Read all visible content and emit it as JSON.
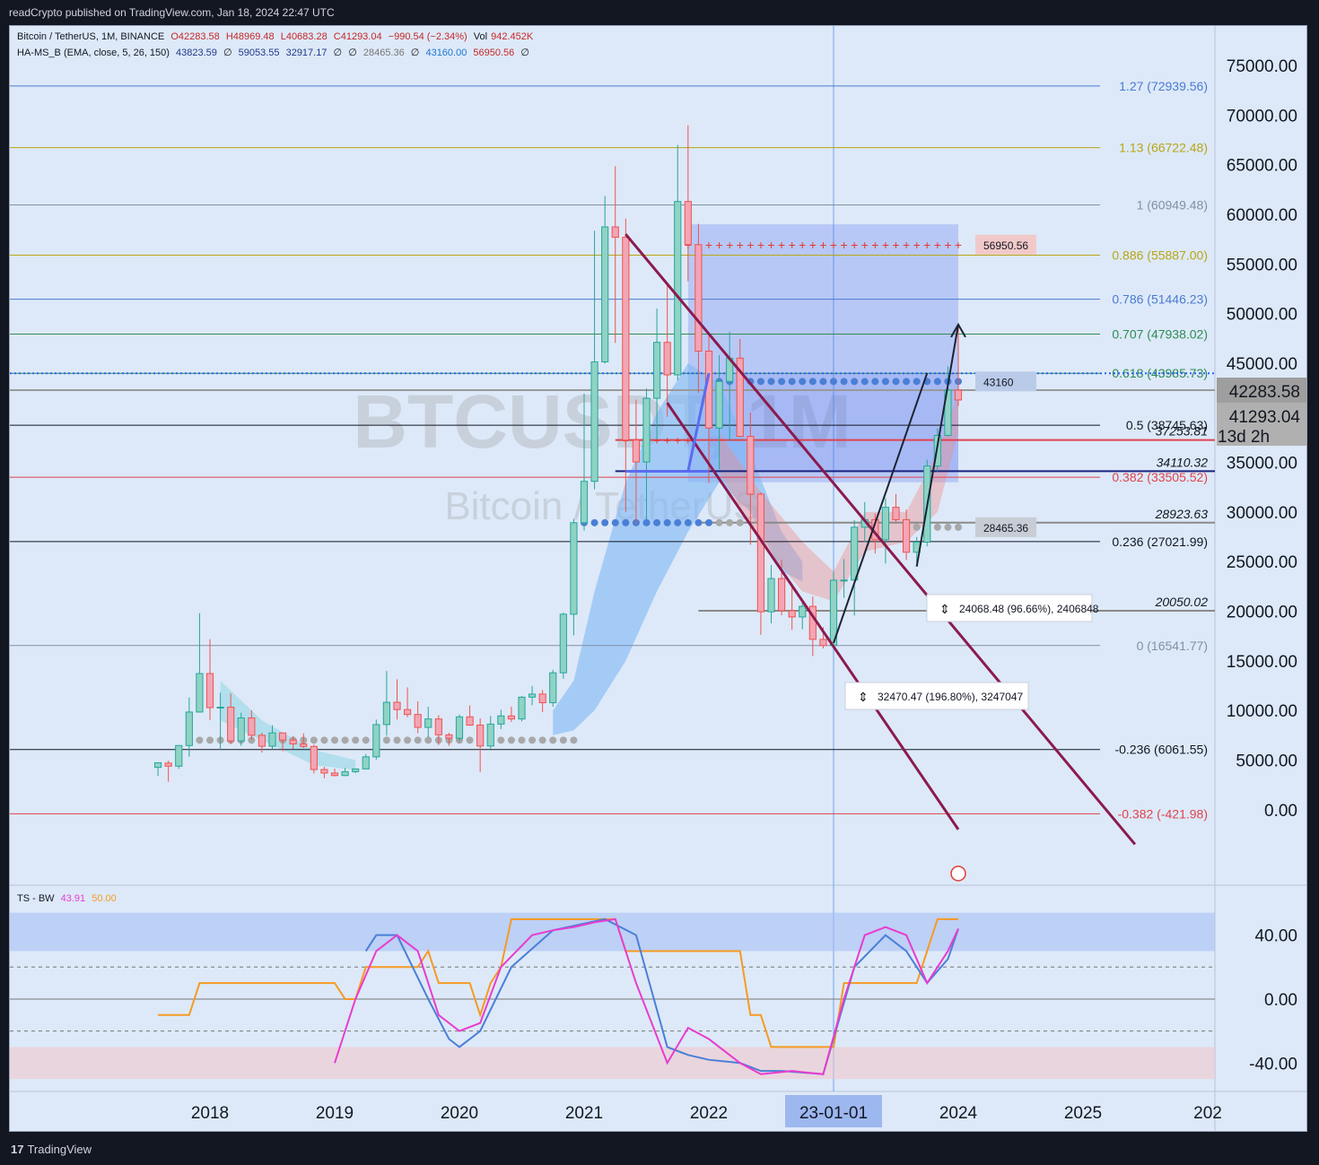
{
  "header": {
    "publisher": "readCrypto published on TradingView.com, Jan 18, 2024 22:47 UTC"
  },
  "footer": {
    "brand": "TradingView"
  },
  "legend": {
    "symbol": "Bitcoin / TetherUS, 1M, BINANCE",
    "open": "O42283.58",
    "high": "H48969.48",
    "low": "L40683.28",
    "close": "C41293.04",
    "change": "−990.54 (−2.34%)",
    "vol_label": "Vol",
    "vol": "942.452K",
    "indicator": "HA-MS_B (EMA, close, 5, 26, 150)",
    "ind_v1": "43823.59",
    "ind_v2": "∅",
    "ind_v3": "59053.55",
    "ind_v4": "32917.17",
    "ind_v5": "∅",
    "ind_v6": "∅",
    "ind_v7": "28465.36",
    "ind_v8": "∅",
    "ind_v9": "43160.00",
    "ind_v10": "56950.56",
    "ind_v11": "∅"
  },
  "oscillator_legend": {
    "name": "TS - BW",
    "v1": "43.91",
    "v2": "50.00"
  },
  "watermark": {
    "symbol": "BTCUSDT, 1M",
    "name": "Bitcoin / TetherUS"
  },
  "colors": {
    "up": "#26a69a",
    "down": "#ef5350",
    "channel": "#8b1a4f",
    "fib_blue": "#4a7bd0",
    "fib_gold": "#b8a516",
    "fib_green": "#2e8b57",
    "fib_red": "#e0424d",
    "osc_orange": "#f59a23",
    "osc_magenta": "#e83ccf",
    "osc_blue": "#4a7fd6"
  },
  "chart_data": {
    "type": "candlestick",
    "symbol": "BTCUSDT",
    "timeframe": "1M",
    "price_axis": {
      "ticks": [
        "75000.00",
        "70000.00",
        "65000.00",
        "60000.00",
        "55000.00",
        "50000.00",
        "45000.00",
        "35000.00",
        "30000.00",
        "25000.00",
        "20000.00",
        "15000.00",
        "10000.00",
        "5000.00",
        "0.00"
      ],
      "range": [
        -4000,
        77000
      ]
    },
    "time_axis": {
      "ticks": [
        "2018",
        "2019",
        "2020",
        "2021",
        "2022",
        "2024",
        "2025",
        "202"
      ],
      "highlight": "23-01-01",
      "range": [
        "2017-05-01",
        "2026-03-01"
      ]
    },
    "last_price": {
      "open_label": "42283.58",
      "close_label": "41293.04",
      "countdown": "13d 2h"
    },
    "fib_levels": [
      {
        "ratio": "1.27",
        "value": 72939.56,
        "label": "1.27 (72939.56)",
        "color": "#4a7bd0"
      },
      {
        "ratio": "1.13",
        "value": 66722.48,
        "label": "1.13 (66722.48)",
        "color": "#b8a516"
      },
      {
        "ratio": "1",
        "value": 60949.48,
        "label": "1 (60949.48)",
        "color": "#8090a8"
      },
      {
        "ratio": "0.886",
        "value": 55887.0,
        "label": "0.886 (55887.00)",
        "color": "#b8a516"
      },
      {
        "ratio": "0.786",
        "value": 51446.23,
        "label": "0.786 (51446.23)",
        "color": "#4a7bd0"
      },
      {
        "ratio": "0.707",
        "value": 47938.02,
        "label": "0.707 (47938.02)",
        "color": "#2e8b57"
      },
      {
        "ratio": "0.618",
        "value": 43985.73,
        "label": "0.618 (43985.73)",
        "color": "#2e8b57"
      },
      {
        "ratio": "0.5",
        "value": 38745.63,
        "label": "0.5 (38745.63)",
        "color": "#131722"
      },
      {
        "ratio": "0.382",
        "value": 33505.52,
        "label": "0.382 (33505.52)",
        "color": "#e0424d"
      },
      {
        "ratio": "0.236",
        "value": 27021.99,
        "label": "0.236 (27021.99)",
        "color": "#131722"
      },
      {
        "ratio": "0",
        "value": 16541.77,
        "label": "0 (16541.77)",
        "color": "#8090a8"
      },
      {
        "ratio": "-0.236",
        "value": 6061.55,
        "label": "-0.236 (6061.55)",
        "color": "#131722"
      },
      {
        "ratio": "-0.382",
        "value": -421.98,
        "label": "-0.382 (-421.98)",
        "color": "#e0424d"
      }
    ],
    "hlines": [
      {
        "value": 37253.81,
        "label": "37253.81",
        "color": "#e0424d"
      },
      {
        "value": 34110.32,
        "label": "34110.32",
        "color": "#1a237e"
      },
      {
        "value": 28923.63,
        "label": "28923.63",
        "color": "#8a8a8a"
      },
      {
        "value": 20050.02,
        "label": "20050.02",
        "color": "#8a8a8a"
      }
    ],
    "indicator_tags": [
      {
        "value": 56950.56,
        "label": "56950.56"
      },
      {
        "value": 43160,
        "label": "43160"
      },
      {
        "value": 28465.36,
        "label": "28465.36"
      }
    ],
    "measurements": [
      {
        "label": "24068.48 (96.66%), 2406848"
      },
      {
        "label": "32470.47 (196.80%), 3247047"
      }
    ],
    "candles": [
      {
        "t": "2017-08",
        "o": 4261,
        "h": 4745,
        "l": 3400,
        "c": 4724
      },
      {
        "t": "2017-09",
        "o": 4690,
        "h": 4939,
        "l": 2817,
        "c": 4378
      },
      {
        "t": "2017-10",
        "o": 4378,
        "h": 6470,
        "l": 4110,
        "c": 6463
      },
      {
        "t": "2017-11",
        "o": 6463,
        "h": 11300,
        "l": 5325,
        "c": 9838
      },
      {
        "t": "2017-12",
        "o": 9838,
        "h": 19798,
        "l": 10400,
        "c": 13716
      },
      {
        "t": "2018-01",
        "o": 13716,
        "h": 17176,
        "l": 9035,
        "c": 10285
      },
      {
        "t": "2018-02",
        "o": 10285,
        "h": 11786,
        "l": 6000,
        "c": 10326
      },
      {
        "t": "2018-03",
        "o": 10326,
        "h": 11708,
        "l": 6600,
        "c": 6923
      },
      {
        "t": "2018-04",
        "o": 6923,
        "h": 9759,
        "l": 6425,
        "c": 9246
      },
      {
        "t": "2018-05",
        "o": 9246,
        "h": 10020,
        "l": 7032,
        "c": 7494
      },
      {
        "t": "2018-06",
        "o": 7494,
        "h": 7754,
        "l": 5750,
        "c": 6391
      },
      {
        "t": "2018-07",
        "o": 6391,
        "h": 8507,
        "l": 6070,
        "c": 7729
      },
      {
        "t": "2018-08",
        "o": 7729,
        "h": 7750,
        "l": 5880,
        "c": 7016
      },
      {
        "t": "2018-09",
        "o": 7016,
        "h": 7410,
        "l": 6111,
        "c": 6626
      },
      {
        "t": "2018-10",
        "o": 6626,
        "h": 7680,
        "l": 6205,
        "c": 6371
      },
      {
        "t": "2018-11",
        "o": 6371,
        "h": 6540,
        "l": 3652,
        "c": 4041
      },
      {
        "t": "2018-12",
        "o": 4041,
        "h": 4313,
        "l": 3156,
        "c": 3689
      },
      {
        "t": "2019-01",
        "o": 3689,
        "h": 4140,
        "l": 3349,
        "c": 3437
      },
      {
        "t": "2019-02",
        "o": 3437,
        "h": 4198,
        "l": 3373,
        "c": 3826
      },
      {
        "t": "2019-03",
        "o": 3826,
        "h": 4140,
        "l": 3670,
        "c": 4103
      },
      {
        "t": "2019-04",
        "o": 4103,
        "h": 5600,
        "l": 4067,
        "c": 5321
      },
      {
        "t": "2019-05",
        "o": 5321,
        "h": 9074,
        "l": 5032,
        "c": 8574
      },
      {
        "t": "2019-06",
        "o": 8574,
        "h": 13970,
        "l": 7451,
        "c": 10818
      },
      {
        "t": "2019-07",
        "o": 10818,
        "h": 13147,
        "l": 9070,
        "c": 10085
      },
      {
        "t": "2019-08",
        "o": 10085,
        "h": 12325,
        "l": 9320,
        "c": 9588
      },
      {
        "t": "2019-09",
        "o": 9588,
        "h": 10905,
        "l": 7710,
        "c": 8289
      },
      {
        "t": "2019-10",
        "o": 8289,
        "h": 10370,
        "l": 7300,
        "c": 9140
      },
      {
        "t": "2019-11",
        "o": 9140,
        "h": 9513,
        "l": 6515,
        "c": 7541
      },
      {
        "t": "2019-12",
        "o": 7541,
        "h": 7750,
        "l": 6435,
        "c": 7195
      },
      {
        "t": "2020-01",
        "o": 7195,
        "h": 9578,
        "l": 6871,
        "c": 9352
      },
      {
        "t": "2020-02",
        "o": 9352,
        "h": 10500,
        "l": 8445,
        "c": 8523
      },
      {
        "t": "2020-03",
        "o": 8523,
        "h": 9189,
        "l": 3782,
        "c": 6410
      },
      {
        "t": "2020-04",
        "o": 6410,
        "h": 9460,
        "l": 6150,
        "c": 8620
      },
      {
        "t": "2020-05",
        "o": 8620,
        "h": 10067,
        "l": 8117,
        "c": 9448
      },
      {
        "t": "2020-06",
        "o": 9448,
        "h": 10380,
        "l": 8833,
        "c": 9138
      },
      {
        "t": "2020-07",
        "o": 9138,
        "h": 11444,
        "l": 8893,
        "c": 11335
      },
      {
        "t": "2020-08",
        "o": 11335,
        "h": 12468,
        "l": 10518,
        "c": 11649
      },
      {
        "t": "2020-09",
        "o": 11649,
        "h": 12050,
        "l": 9825,
        "c": 10776
      },
      {
        "t": "2020-10",
        "o": 10776,
        "h": 14100,
        "l": 10374,
        "c": 13791
      },
      {
        "t": "2020-11",
        "o": 13791,
        "h": 19863,
        "l": 13195,
        "c": 19695
      },
      {
        "t": "2020-12",
        "o": 19695,
        "h": 29300,
        "l": 17572,
        "c": 28923
      },
      {
        "t": "2021-01",
        "o": 28923,
        "h": 41950,
        "l": 28130,
        "c": 33092
      },
      {
        "t": "2021-02",
        "o": 33092,
        "h": 58352,
        "l": 32296,
        "c": 45135
      },
      {
        "t": "2021-03",
        "o": 45135,
        "h": 61844,
        "l": 44950,
        "c": 58740
      },
      {
        "t": "2021-04",
        "o": 58740,
        "h": 64854,
        "l": 47044,
        "c": 57694
      },
      {
        "t": "2021-05",
        "o": 57694,
        "h": 59592,
        "l": 30000,
        "c": 37253
      },
      {
        "t": "2021-06",
        "o": 37253,
        "h": 41330,
        "l": 28805,
        "c": 35045
      },
      {
        "t": "2021-07",
        "o": 35045,
        "h": 42448,
        "l": 29278,
        "c": 41461
      },
      {
        "t": "2021-08",
        "o": 41461,
        "h": 50500,
        "l": 37332,
        "c": 47100
      },
      {
        "t": "2021-09",
        "o": 47100,
        "h": 52920,
        "l": 39600,
        "c": 43824
      },
      {
        "t": "2021-10",
        "o": 43824,
        "h": 66999,
        "l": 43283,
        "c": 61299
      },
      {
        "t": "2021-11",
        "o": 61299,
        "h": 69000,
        "l": 53256,
        "c": 56950
      },
      {
        "t": "2021-12",
        "o": 56950,
        "h": 59053,
        "l": 42000,
        "c": 46217
      },
      {
        "t": "2022-01",
        "o": 46217,
        "h": 47990,
        "l": 32917,
        "c": 38466
      },
      {
        "t": "2022-02",
        "o": 38466,
        "h": 45821,
        "l": 34322,
        "c": 43160
      },
      {
        "t": "2022-03",
        "o": 43160,
        "h": 48189,
        "l": 37155,
        "c": 45510
      },
      {
        "t": "2022-04",
        "o": 45510,
        "h": 47444,
        "l": 37578,
        "c": 37630
      },
      {
        "t": "2022-05",
        "o": 37630,
        "h": 40023,
        "l": 26700,
        "c": 31801
      },
      {
        "t": "2022-06",
        "o": 31801,
        "h": 31982,
        "l": 17622,
        "c": 19942
      },
      {
        "t": "2022-07",
        "o": 19942,
        "h": 24668,
        "l": 18782,
        "c": 23293
      },
      {
        "t": "2022-08",
        "o": 23293,
        "h": 25211,
        "l": 19600,
        "c": 20050
      },
      {
        "t": "2022-09",
        "o": 20050,
        "h": 22799,
        "l": 18125,
        "c": 19422
      },
      {
        "t": "2022-10",
        "o": 19422,
        "h": 20988,
        "l": 18190,
        "c": 20490
      },
      {
        "t": "2022-11",
        "o": 20490,
        "h": 21480,
        "l": 15476,
        "c": 17164
      },
      {
        "t": "2022-12",
        "o": 17164,
        "h": 18387,
        "l": 16256,
        "c": 16542
      },
      {
        "t": "2023-01",
        "o": 16542,
        "h": 23960,
        "l": 16499,
        "c": 23125
      },
      {
        "t": "2023-02",
        "o": 23125,
        "h": 25250,
        "l": 21351,
        "c": 23141
      },
      {
        "t": "2023-03",
        "o": 23141,
        "h": 29184,
        "l": 19549,
        "c": 28465
      },
      {
        "t": "2023-04",
        "o": 28465,
        "h": 31000,
        "l": 26942,
        "c": 29233
      },
      {
        "t": "2023-05",
        "o": 29233,
        "h": 29820,
        "l": 25811,
        "c": 27210
      },
      {
        "t": "2023-06",
        "o": 27210,
        "h": 31390,
        "l": 24800,
        "c": 30472
      },
      {
        "t": "2023-07",
        "o": 30472,
        "h": 31805,
        "l": 28861,
        "c": 29232
      },
      {
        "t": "2023-08",
        "o": 29232,
        "h": 30244,
        "l": 25166,
        "c": 25941
      },
      {
        "t": "2023-09",
        "o": 25941,
        "h": 27483,
        "l": 24901,
        "c": 26962
      },
      {
        "t": "2023-10",
        "o": 26962,
        "h": 35280,
        "l": 26538,
        "c": 34639
      },
      {
        "t": "2023-11",
        "o": 34639,
        "h": 38450,
        "l": 34097,
        "c": 37723
      },
      {
        "t": "2023-12",
        "o": 37723,
        "h": 44700,
        "l": 37629,
        "c": 42283
      },
      {
        "t": "2024-01",
        "o": 42283.58,
        "h": 48969.48,
        "l": 40683.28,
        "c": 41293.04
      }
    ],
    "oscillator": {
      "name": "TS - BW",
      "axis_ticks": [
        "40.00",
        "0.00",
        "-40.00"
      ],
      "range": [
        -55,
        60
      ],
      "orange": [
        [
          "2017-08",
          -10
        ],
        [
          "2017-11",
          -10
        ],
        [
          "2017-12",
          10
        ],
        [
          "2018-06",
          10
        ],
        [
          "2019-01",
          10
        ],
        [
          "2019-02",
          0
        ],
        [
          "2019-03",
          0
        ],
        [
          "2019-04",
          20
        ],
        [
          "2019-09",
          20
        ],
        [
          "2019-10",
          30
        ],
        [
          "2019-11",
          10
        ],
        [
          "2020-02",
          10
        ],
        [
          "2020-03",
          -10
        ],
        [
          "2020-04",
          10
        ],
        [
          "2020-05",
          20
        ],
        [
          "2020-06",
          50
        ],
        [
          "2021-04",
          50
        ],
        [
          "2021-05",
          30
        ],
        [
          "2022-04",
          30
        ],
        [
          "2022-05",
          -10
        ],
        [
          "2022-06",
          -10
        ],
        [
          "2022-07",
          -30
        ],
        [
          "2023-01",
          -30
        ],
        [
          "2023-02",
          10
        ],
        [
          "2023-09",
          10
        ],
        [
          "2023-10",
          30
        ],
        [
          "2023-11",
          50
        ],
        [
          "2024-01",
          50
        ]
      ],
      "magenta": [
        [
          "2019-01",
          -40
        ],
        [
          "2019-03",
          0
        ],
        [
          "2019-05",
          30
        ],
        [
          "2019-07",
          40
        ],
        [
          "2019-09",
          30
        ],
        [
          "2019-11",
          -10
        ],
        [
          "2020-01",
          -20
        ],
        [
          "2020-03",
          -15
        ],
        [
          "2020-05",
          20
        ],
        [
          "2020-08",
          40
        ],
        [
          "2020-10",
          43
        ],
        [
          "2020-12",
          45
        ],
        [
          "2021-02",
          48
        ],
        [
          "2021-04",
          50
        ],
        [
          "2021-06",
          10
        ],
        [
          "2021-09",
          -40
        ],
        [
          "2021-11",
          -18
        ],
        [
          "2022-01",
          -25
        ],
        [
          "2022-04",
          -40
        ],
        [
          "2022-06",
          -47
        ],
        [
          "2022-09",
          -45
        ],
        [
          "2022-12",
          -47
        ],
        [
          "2023-02",
          0
        ],
        [
          "2023-04",
          40
        ],
        [
          "2023-06",
          45
        ],
        [
          "2023-08",
          40
        ],
        [
          "2023-10",
          10
        ],
        [
          "2023-12",
          30
        ],
        [
          "2024-01",
          44
        ]
      ],
      "blue": [
        [
          "2019-04",
          30
        ],
        [
          "2019-05",
          40
        ],
        [
          "2019-07",
          40
        ],
        [
          "2019-10",
          0
        ],
        [
          "2019-12",
          -25
        ],
        [
          "2020-01",
          -30
        ],
        [
          "2020-03",
          -20
        ],
        [
          "2020-06",
          20
        ],
        [
          "2020-10",
          43
        ],
        [
          "2021-03",
          50
        ],
        [
          "2021-06",
          40
        ],
        [
          "2021-09",
          -30
        ],
        [
          "2021-11",
          -35
        ],
        [
          "2022-01",
          -38
        ],
        [
          "2022-04",
          -40
        ],
        [
          "2022-06",
          -45
        ],
        [
          "2022-08",
          -45
        ],
        [
          "2022-12",
          -47
        ],
        [
          "2023-03",
          20
        ],
        [
          "2023-06",
          40
        ],
        [
          "2023-08",
          30
        ],
        [
          "2023-10",
          10
        ],
        [
          "2023-12",
          25
        ],
        [
          "2024-01",
          44
        ]
      ]
    }
  }
}
